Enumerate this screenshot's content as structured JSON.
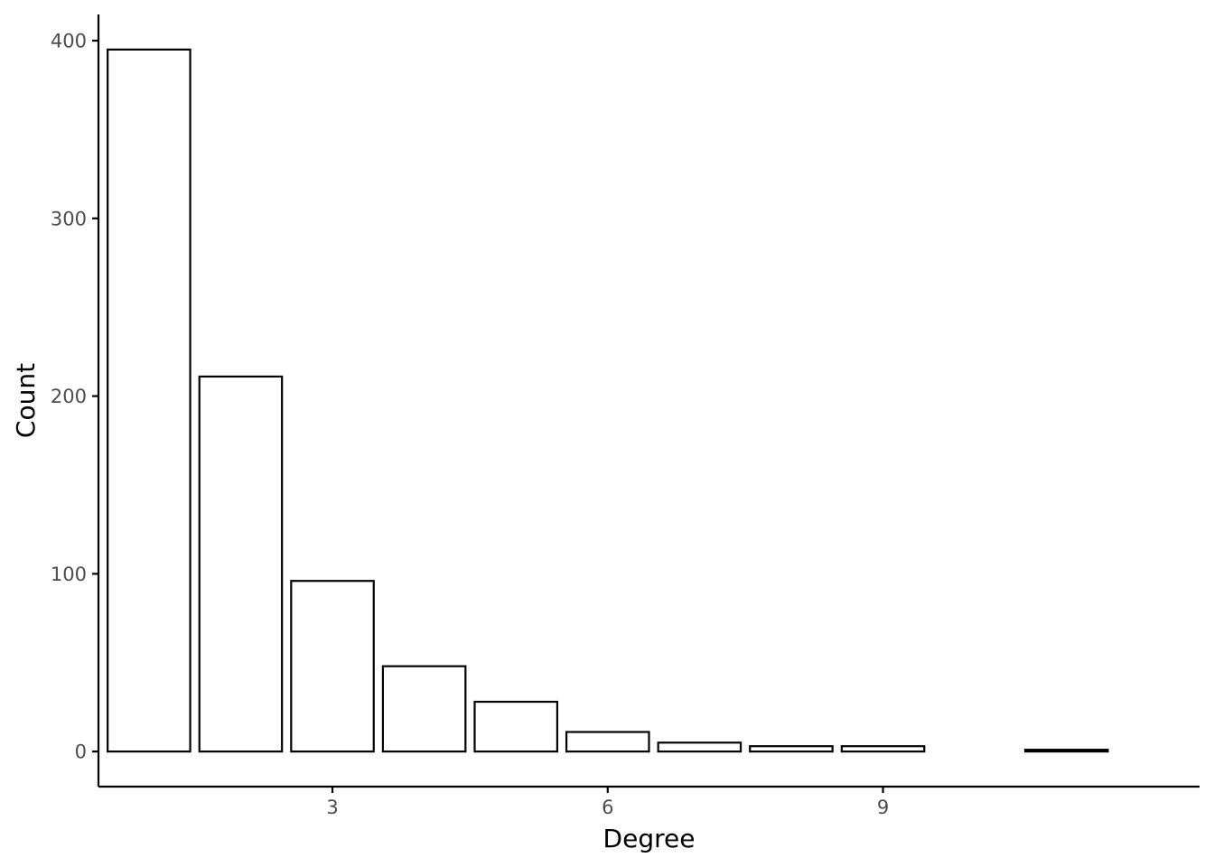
{
  "chart_data": {
    "type": "bar",
    "title": "",
    "xlabel": "Degree",
    "ylabel": "Count",
    "x": [
      1,
      2,
      3,
      4,
      5,
      6,
      7,
      8,
      9,
      11
    ],
    "values": [
      395,
      211,
      96,
      48,
      28,
      11,
      5,
      3,
      3,
      1
    ],
    "xlim": [
      0.45,
      12.45
    ],
    "ylim": [
      -19.75,
      414.75
    ],
    "x_ticks": [
      3,
      6,
      9
    ],
    "y_ticks": [
      0,
      100,
      200,
      300,
      400
    ],
    "grid": false,
    "legend": "none",
    "colors": {
      "bar_fill": "#ffffff",
      "bar_stroke": "#000000",
      "axis": "#000000",
      "tick_text": "#4d4d4d"
    }
  }
}
